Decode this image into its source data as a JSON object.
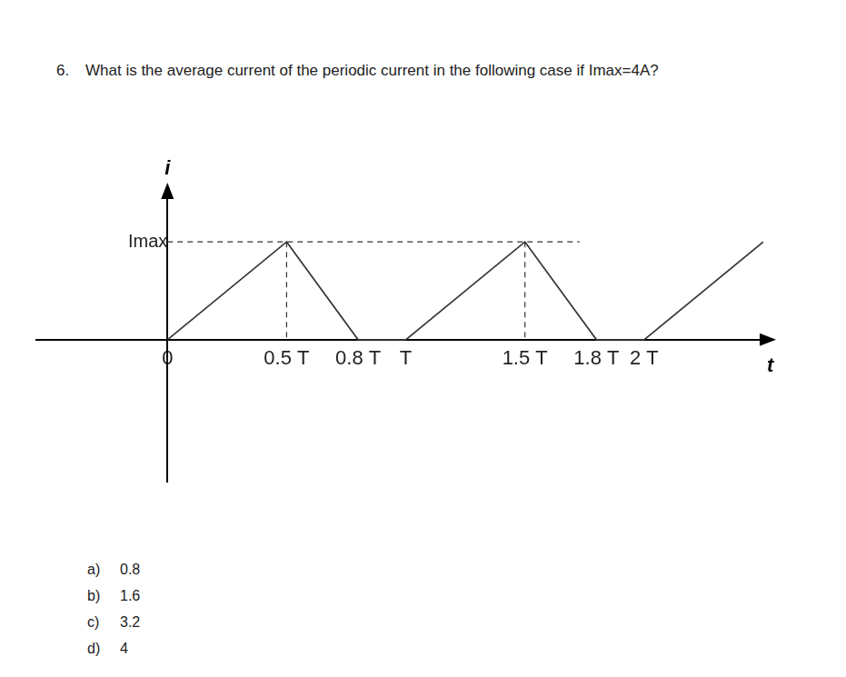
{
  "question": {
    "number": "6.",
    "text": "What is the average current of the periodic current in the following case if Imax=4A?"
  },
  "chart_data": {
    "type": "line",
    "color": "#333333",
    "grid": false,
    "x_label": "t",
    "y_label": "i",
    "x": [
      0,
      0.5,
      0.8,
      1,
      1.5,
      1.8,
      2,
      2.5
    ],
    "values": [
      0,
      4,
      0,
      0,
      4,
      0,
      0,
      4
    ],
    "xlim": [
      -0.55,
      2.5
    ],
    "xticks": [
      {
        "value": 0,
        "label": "0"
      },
      {
        "value": 0.5,
        "label": "0.5 T"
      },
      {
        "value": 0.8,
        "label": "0.8 T"
      },
      {
        "value": 1,
        "label": "T"
      },
      {
        "value": 1.5,
        "label": "1.5 T"
      },
      {
        "value": 1.8,
        "label": "1.8 T"
      },
      {
        "value": 2,
        "label": "2 T"
      }
    ],
    "ylim": [
      -5.8,
      5.9
    ],
    "yticks": [
      {
        "value": 4,
        "label": "Imax"
      }
    ]
  },
  "options": [
    {
      "letter": "a)",
      "text": "0.8"
    },
    {
      "letter": "b)",
      "text": "1.6"
    },
    {
      "letter": "c)",
      "text": "3.2"
    },
    {
      "letter": "d)",
      "text": "4"
    }
  ]
}
